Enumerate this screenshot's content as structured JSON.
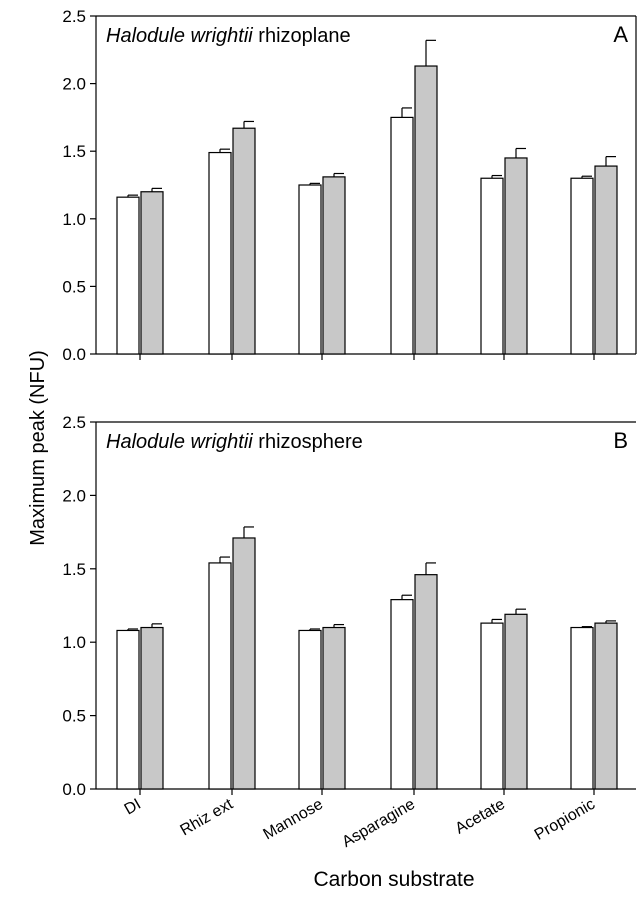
{
  "chart_data": {
    "type": "bar",
    "ylabel": "Maximum peak (NFU)",
    "xlabel": "Carbon substrate",
    "categories": [
      "DI",
      "Rhiz ext",
      "Mannose",
      "Asparagine",
      "Acetate",
      "Propionic"
    ],
    "ylim": [
      0,
      2.5
    ],
    "yticks": [
      "0.0",
      "0.5",
      "1.0",
      "1.5",
      "2.0",
      "2.5"
    ],
    "grid": false,
    "colors": {
      "open_bar": "#ffffff",
      "filled_bar": "#c8c8c8",
      "stroke": "#000000"
    },
    "panels": [
      {
        "letter": "A",
        "title_italic": "Halodule wrightii",
        "title_rest": " rhizoplane",
        "series": [
          {
            "values": [
              1.16,
              1.49,
              1.25,
              1.75,
              1.3,
              1.3
            ],
            "errors": [
              0.015,
              0.025,
              0.012,
              0.07,
              0.02,
              0.015
            ]
          },
          {
            "values": [
              1.2,
              1.67,
              1.31,
              2.13,
              1.45,
              1.39
            ],
            "errors": [
              0.025,
              0.05,
              0.025,
              0.19,
              0.07,
              0.07
            ]
          }
        ]
      },
      {
        "letter": "B",
        "title_italic": "Halodule wrightii",
        "title_rest": " rhizosphere",
        "series": [
          {
            "values": [
              1.08,
              1.54,
              1.08,
              1.29,
              1.13,
              1.1
            ],
            "errors": [
              0.01,
              0.04,
              0.01,
              0.03,
              0.025,
              0.006
            ]
          },
          {
            "values": [
              1.1,
              1.71,
              1.1,
              1.46,
              1.19,
              1.13
            ],
            "errors": [
              0.025,
              0.075,
              0.02,
              0.08,
              0.035,
              0.015
            ]
          }
        ]
      }
    ]
  }
}
